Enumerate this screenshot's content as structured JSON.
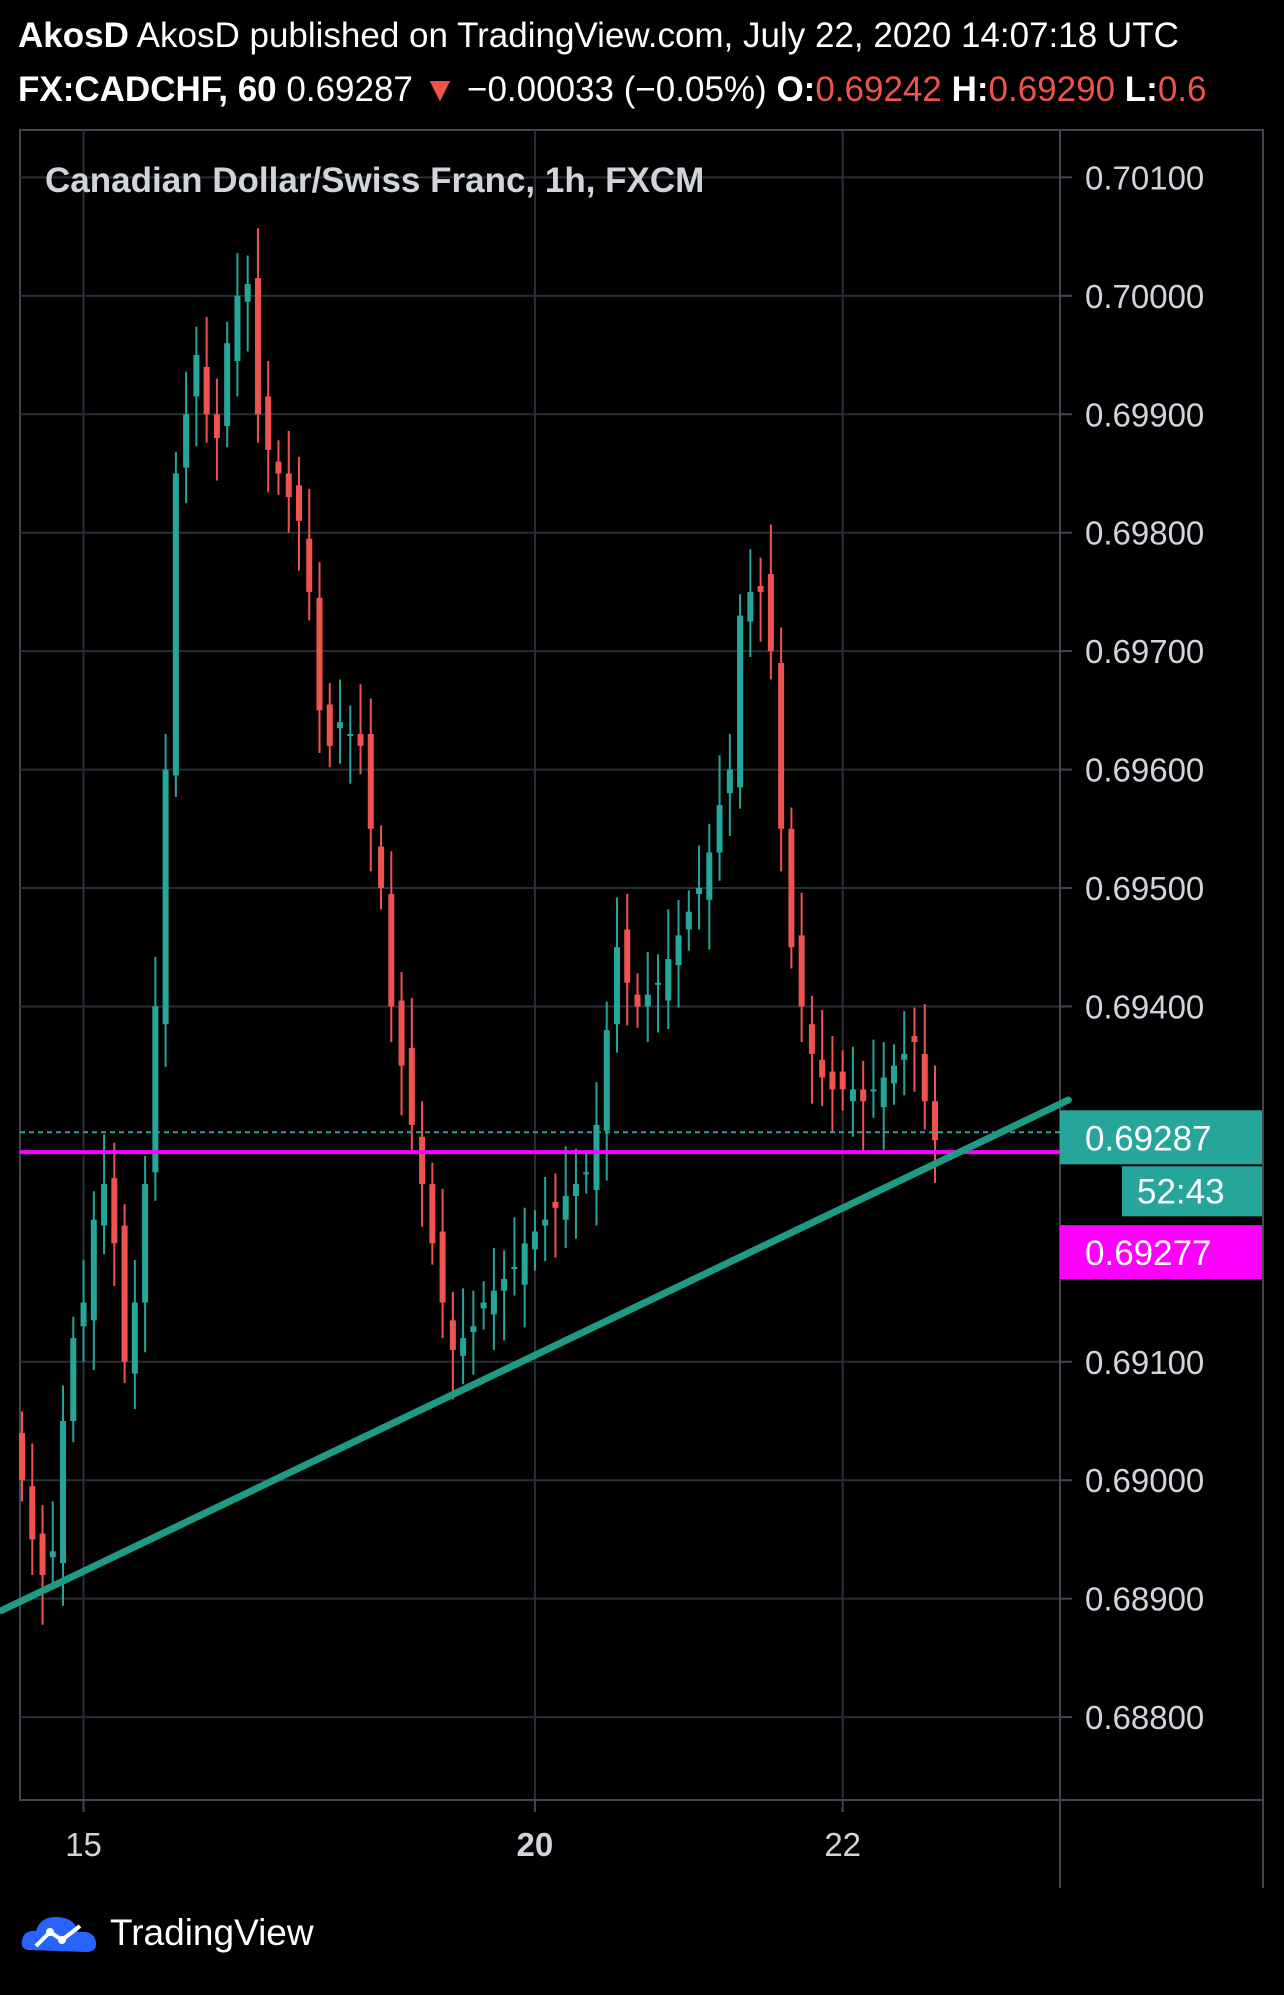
{
  "header": {
    "line1": "AkosD published on TradingView.com, July 22, 2020 14:07:18 UTC",
    "symbol": "FX:CADCHF, 60",
    "last": "0.69287",
    "down_arrow": "▼",
    "change": "−0.00033 (−0.05%)",
    "open_label": "O:",
    "open_value": "0.69242",
    "high_label": "H:",
    "high_value": "0.69290",
    "low_label": "L:",
    "low_value": "0.6"
  },
  "chart_title": "Canadian Dollar/Swiss Franc, 1h, FXCM",
  "badges": {
    "last_price": "0.69287",
    "countdown": "52:43",
    "line_price": "0.69277"
  },
  "logo_text": "TradingView",
  "colors": {
    "up": "#26a69a",
    "down": "#ef5350",
    "trendline": "#1f9a85",
    "horizontal_line": "#ff00ff",
    "grid": "#2a2e39",
    "background": "#000000",
    "axis_text": "#d1d4dc"
  },
  "chart_data": {
    "type": "candlestick",
    "title": "Canadian Dollar/Swiss Franc, 1h, FXCM",
    "ylim": [
      0.6873,
      0.7014
    ],
    "y_ticks": [
      "0.70100",
      "0.70000",
      "0.69900",
      "0.69800",
      "0.69700",
      "0.69600",
      "0.69500",
      "0.69400",
      "0.69100",
      "0.69000",
      "0.68900",
      "0.68800"
    ],
    "x_ticks": [
      {
        "label": "15",
        "bar": 6,
        "bold": false
      },
      {
        "label": "20",
        "bar": 50,
        "bold": true
      },
      {
        "label": "22",
        "bar": 80,
        "bold": false
      }
    ],
    "grid": true,
    "last_price": 0.69287,
    "horizontal_line": 0.69277,
    "trendline": [
      {
        "bar": -2,
        "price": 0.6889
      },
      {
        "bar": 102,
        "price": 0.69321
      }
    ],
    "closes": [
      0.69,
      0.6895,
      0.6892,
      0.6894,
      0.6905,
      0.6912,
      0.6915,
      0.6922,
      0.6925,
      0.692,
      0.691,
      0.6915,
      0.6925,
      0.694,
      0.696,
      0.6985,
      0.699,
      0.6995,
      0.699,
      0.6988,
      0.6996,
      0.7,
      0.7001,
      0.699,
      0.6987,
      0.6985,
      0.6983,
      0.6981,
      0.6975,
      0.6965,
      0.6962,
      0.6964,
      0.6963,
      0.6962,
      0.6955,
      0.695,
      0.694,
      0.6935,
      0.693,
      0.6925,
      0.692,
      0.6915,
      0.6911,
      0.6912,
      0.6913,
      0.6915,
      0.6916,
      0.6917,
      0.6918,
      0.692,
      0.6921,
      0.6922,
      0.6923,
      0.6924,
      0.6925,
      0.6926,
      0.693,
      0.6938,
      0.6945,
      0.6942,
      0.694,
      0.6941,
      0.6942,
      0.6944,
      0.6946,
      0.6948,
      0.695,
      0.6953,
      0.6957,
      0.696,
      0.6973,
      0.6975,
      0.6975,
      0.697,
      0.6955,
      0.6945,
      0.694,
      0.6936,
      0.6934,
      0.6933,
      0.6933,
      0.6933,
      0.6932,
      0.6933,
      0.6934,
      0.6935,
      0.6936,
      0.6937,
      0.6932,
      0.69287
    ],
    "ohlc": "derived from closes by script; bars 0..89 spaced evenly, last bar = last_price"
  }
}
